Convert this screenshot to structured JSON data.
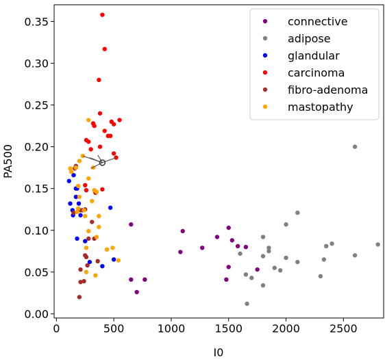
{
  "chart_data": {
    "type": "scatter",
    "title": "",
    "xlabel": "I0",
    "ylabel": "PA500",
    "xlim": [
      -20,
      2850
    ],
    "ylim": [
      -0.005,
      0.37
    ],
    "xticks": [
      0,
      500,
      1000,
      1500,
      2000,
      2500
    ],
    "xtick_labels": [
      "0",
      "500",
      "1000",
      "1500",
      "2000",
      "2500"
    ],
    "yticks": [
      0.0,
      0.05,
      0.1,
      0.15,
      0.2,
      0.25,
      0.3,
      0.35
    ],
    "ytick_labels": [
      "0.00",
      "0.05",
      "0.10",
      "0.15",
      "0.20",
      "0.25",
      "0.30",
      "0.35"
    ],
    "grid": false,
    "legend_position": "top-right",
    "series": [
      {
        "name": "connective",
        "color": "#800080",
        "points": [
          [
            650,
            0.107
          ],
          [
            1100,
            0.099
          ],
          [
            1080,
            0.074
          ],
          [
            1270,
            0.079
          ],
          [
            1400,
            0.092
          ],
          [
            1500,
            0.103
          ],
          [
            1530,
            0.088
          ],
          [
            1580,
            0.081
          ],
          [
            1650,
            0.08
          ],
          [
            1500,
            0.056
          ],
          [
            1480,
            0.041
          ],
          [
            1750,
            0.053
          ],
          [
            650,
            0.041
          ],
          [
            770,
            0.041
          ],
          [
            700,
            0.026
          ]
        ]
      },
      {
        "name": "adipose",
        "color": "#808080",
        "points": [
          [
            2600,
            0.2
          ],
          [
            2100,
            0.121
          ],
          [
            2000,
            0.107
          ],
          [
            1800,
            0.092
          ],
          [
            1850,
            0.079
          ],
          [
            1850,
            0.075
          ],
          [
            1600,
            0.072
          ],
          [
            1800,
            0.069
          ],
          [
            2000,
            0.067
          ],
          [
            2100,
            0.062
          ],
          [
            2350,
            0.081
          ],
          [
            2400,
            0.084
          ],
          [
            2600,
            0.07
          ],
          [
            2800,
            0.083
          ],
          [
            2330,
            0.065
          ],
          [
            1900,
            0.055
          ],
          [
            1950,
            0.052
          ],
          [
            1650,
            0.047
          ],
          [
            1700,
            0.043
          ],
          [
            2300,
            0.045
          ],
          [
            1800,
            0.034
          ],
          [
            1660,
            0.012
          ]
        ]
      },
      {
        "name": "glandular",
        "color": "#0000ff",
        "points": [
          [
            110,
            0.159
          ],
          [
            150,
            0.166
          ],
          [
            170,
            0.15
          ],
          [
            180,
            0.15
          ],
          [
            170,
            0.14
          ],
          [
            120,
            0.132
          ],
          [
            195,
            0.132
          ],
          [
            140,
            0.124
          ],
          [
            230,
            0.124
          ],
          [
            145,
            0.118
          ],
          [
            210,
            0.118
          ],
          [
            470,
            0.127
          ],
          [
            180,
            0.09
          ],
          [
            250,
            0.087
          ],
          [
            290,
            0.062
          ],
          [
            500,
            0.065
          ],
          [
            400,
            0.057
          ]
        ]
      },
      {
        "name": "carcinoma",
        "color": "#ff0000",
        "points": [
          [
            400,
            0.358
          ],
          [
            420,
            0.317
          ],
          [
            370,
            0.28
          ],
          [
            380,
            0.24
          ],
          [
            480,
            0.23
          ],
          [
            500,
            0.227
          ],
          [
            550,
            0.232
          ],
          [
            320,
            0.228
          ],
          [
            330,
            0.225
          ],
          [
            420,
            0.219
          ],
          [
            450,
            0.213
          ],
          [
            470,
            0.213
          ],
          [
            260,
            0.208
          ],
          [
            280,
            0.206
          ],
          [
            380,
            0.2
          ],
          [
            300,
            0.197
          ],
          [
            500,
            0.192
          ],
          [
            520,
            0.187
          ],
          [
            250,
            0.154
          ],
          [
            260,
            0.148
          ],
          [
            400,
            0.149
          ],
          [
            340,
            0.145
          ]
        ]
      },
      {
        "name": "fibro-adenoma",
        "color": "#a52a2a",
        "points": [
          [
            170,
            0.177
          ],
          [
            160,
            0.174
          ],
          [
            250,
            0.125
          ],
          [
            150,
            0.121
          ],
          [
            210,
            0.124
          ],
          [
            310,
            0.11
          ],
          [
            280,
            0.09
          ],
          [
            330,
            0.09
          ],
          [
            250,
            0.07
          ],
          [
            260,
            0.068
          ],
          [
            360,
            0.063
          ],
          [
            210,
            0.053
          ],
          [
            270,
            0.058
          ],
          [
            240,
            0.039
          ],
          [
            210,
            0.038
          ],
          [
            200,
            0.02
          ]
        ]
      },
      {
        "name": "mastopathy",
        "color": "#ffa500",
        "points": [
          [
            280,
            0.232
          ],
          [
            230,
            0.189
          ],
          [
            200,
            0.183
          ],
          [
            170,
            0.175
          ],
          [
            120,
            0.174
          ],
          [
            130,
            0.17
          ],
          [
            320,
            0.175
          ],
          [
            280,
            0.162
          ],
          [
            190,
            0.153
          ],
          [
            330,
            0.148
          ],
          [
            350,
            0.146
          ],
          [
            200,
            0.14
          ],
          [
            310,
            0.135
          ],
          [
            190,
            0.126
          ],
          [
            180,
            0.122
          ],
          [
            240,
            0.124
          ],
          [
            250,
            0.117
          ],
          [
            370,
            0.117
          ],
          [
            370,
            0.104
          ],
          [
            280,
            0.099
          ],
          [
            350,
            0.092
          ],
          [
            260,
            0.079
          ],
          [
            440,
            0.077
          ],
          [
            490,
            0.079
          ],
          [
            540,
            0.064
          ],
          [
            260,
            0.05
          ],
          [
            340,
            0.046
          ]
        ]
      }
    ],
    "annotation": {
      "type": "star",
      "center": [
        400,
        0.181
      ],
      "endpoints": [
        [
          300,
          0.174
        ],
        [
          230,
          0.189
        ],
        [
          290,
          0.187
        ],
        [
          520,
          0.187
        ],
        [
          360,
          0.19
        ]
      ]
    }
  }
}
